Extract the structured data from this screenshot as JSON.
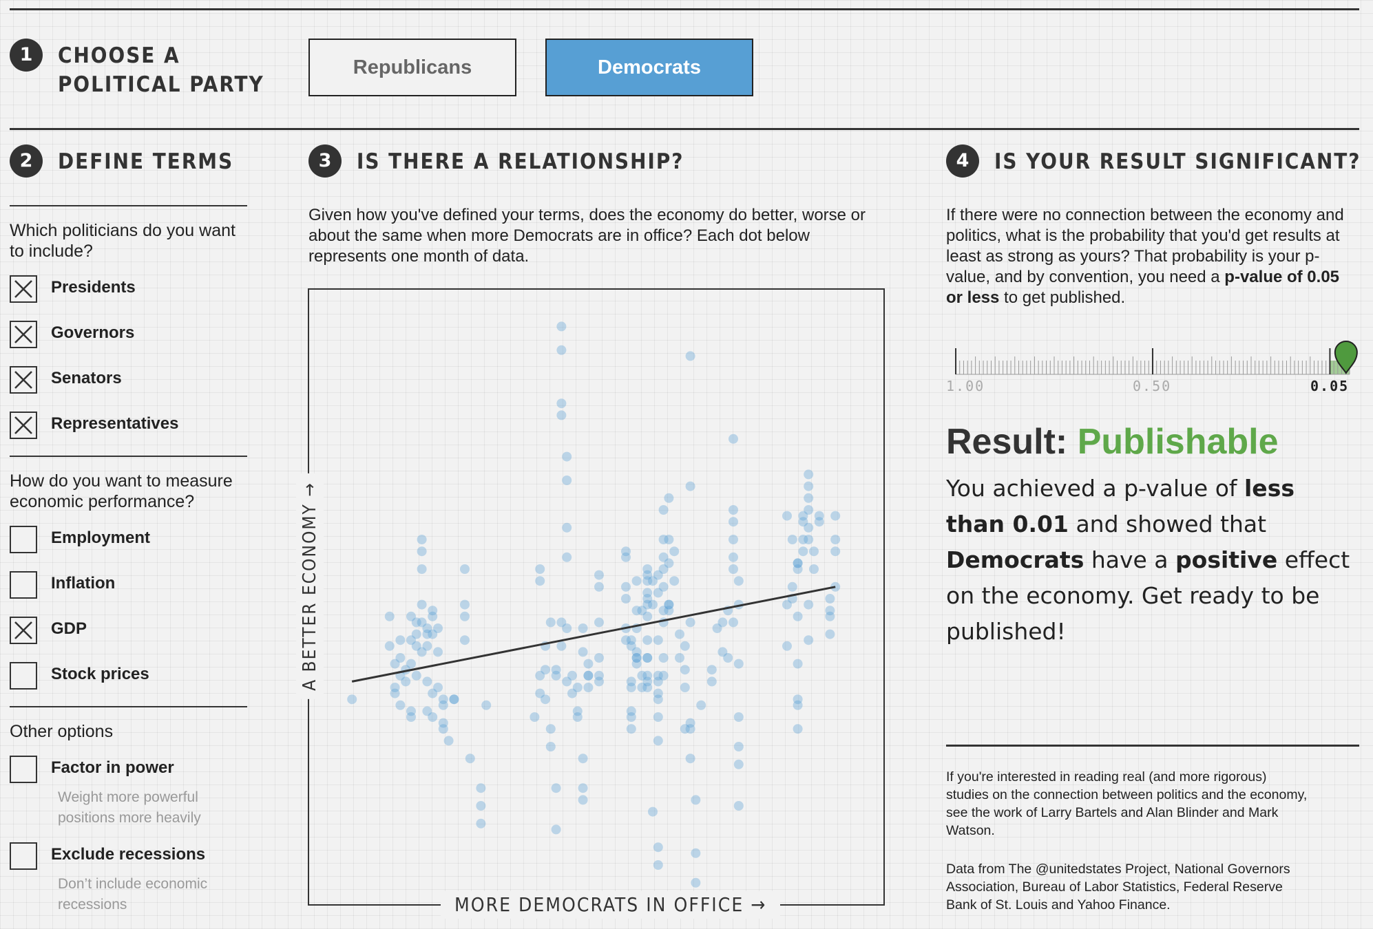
{
  "step1": {
    "number": "1",
    "title_line1": "CHOOSE A",
    "title_line2": "POLITICAL PARTY"
  },
  "party": {
    "options": [
      "Republicans",
      "Democrats"
    ],
    "selected": "Democrats"
  },
  "step2": {
    "number": "2",
    "title": "DEFINE TERMS",
    "q_politicians": "Which politicians do you want to include?",
    "politicians": [
      {
        "label": "Presidents",
        "checked": true
      },
      {
        "label": "Governors",
        "checked": true
      },
      {
        "label": "Senators",
        "checked": true
      },
      {
        "label": "Representatives",
        "checked": true
      }
    ],
    "q_economy": "How do you want to measure economic performance?",
    "measures": [
      {
        "label": "Employment",
        "checked": false
      },
      {
        "label": "Inflation",
        "checked": false
      },
      {
        "label": "GDP",
        "checked": true
      },
      {
        "label": "Stock prices",
        "checked": false
      }
    ],
    "other_title": "Other options",
    "other": [
      {
        "label": "Factor in power",
        "checked": false,
        "hint": "Weight more powerful positions more heavily"
      },
      {
        "label": "Exclude recessions",
        "checked": false,
        "hint": "Don’t include economic recessions"
      }
    ]
  },
  "step3": {
    "number": "3",
    "title": "IS THERE A RELATIONSHIP?",
    "description": "Given how you've defined your terms, does the economy do better, worse or about the same when more Democrats are in office? Each dot below represents one month of data."
  },
  "chart_data": {
    "type": "scatter",
    "xlabel": "MORE DEMOCRATS IN OFFICE →",
    "ylabel": "A BETTER ECONOMY →",
    "xlim": [
      0,
      100
    ],
    "ylim": [
      0,
      100
    ],
    "point_color": "#579fd4",
    "trend": [
      [
        4,
        36
      ],
      [
        94,
        52
      ]
    ],
    "points": [
      [
        4,
        33
      ],
      [
        11,
        42
      ],
      [
        11,
        47
      ],
      [
        12,
        39
      ],
      [
        12,
        35
      ],
      [
        12,
        34
      ],
      [
        13,
        40
      ],
      [
        13,
        43
      ],
      [
        13,
        37
      ],
      [
        13,
        32
      ],
      [
        14,
        38
      ],
      [
        14,
        36
      ],
      [
        15,
        47
      ],
      [
        15,
        43
      ],
      [
        15,
        39
      ],
      [
        15,
        31
      ],
      [
        15,
        30
      ],
      [
        16,
        44
      ],
      [
        16,
        46
      ],
      [
        16,
        37
      ],
      [
        16,
        42
      ],
      [
        17,
        46
      ],
      [
        17,
        41
      ],
      [
        17,
        60
      ],
      [
        17,
        58
      ],
      [
        17,
        55
      ],
      [
        17,
        49
      ],
      [
        18,
        44
      ],
      [
        18,
        42
      ],
      [
        18,
        45
      ],
      [
        18,
        36
      ],
      [
        18,
        31
      ],
      [
        19,
        47
      ],
      [
        19,
        44
      ],
      [
        19,
        34
      ],
      [
        19,
        30
      ],
      [
        19,
        48
      ],
      [
        20,
        45
      ],
      [
        20,
        41
      ],
      [
        20,
        35
      ],
      [
        21,
        33
      ],
      [
        21,
        32
      ],
      [
        21,
        28
      ],
      [
        21,
        29
      ],
      [
        22,
        26
      ],
      [
        23,
        33
      ],
      [
        23,
        33
      ],
      [
        25,
        55
      ],
      [
        25,
        49
      ],
      [
        25,
        47
      ],
      [
        25,
        43
      ],
      [
        26,
        23
      ],
      [
        28,
        18
      ],
      [
        28,
        15
      ],
      [
        28,
        12
      ],
      [
        29,
        32
      ],
      [
        38,
        30
      ],
      [
        39,
        34
      ],
      [
        39,
        53
      ],
      [
        39,
        55
      ],
      [
        39,
        37
      ],
      [
        40,
        42
      ],
      [
        40,
        38
      ],
      [
        40,
        33
      ],
      [
        41,
        28
      ],
      [
        41,
        25
      ],
      [
        41,
        46
      ],
      [
        42,
        38
      ],
      [
        42,
        37
      ],
      [
        42,
        18
      ],
      [
        42,
        11
      ],
      [
        43,
        46
      ],
      [
        43,
        42
      ],
      [
        43,
        81
      ],
      [
        43,
        83
      ],
      [
        43,
        92
      ],
      [
        43,
        96
      ],
      [
        44,
        45
      ],
      [
        44,
        36
      ],
      [
        44,
        74
      ],
      [
        44,
        70
      ],
      [
        44,
        62
      ],
      [
        44,
        57
      ],
      [
        45,
        37
      ],
      [
        45,
        34
      ],
      [
        46,
        35
      ],
      [
        46,
        30
      ],
      [
        46,
        31
      ],
      [
        47,
        18
      ],
      [
        47,
        16
      ],
      [
        47,
        23
      ],
      [
        47,
        41
      ],
      [
        47,
        45
      ],
      [
        48,
        39
      ],
      [
        48,
        37
      ],
      [
        48,
        37
      ],
      [
        48,
        35
      ],
      [
        50,
        54
      ],
      [
        50,
        52
      ],
      [
        50,
        46
      ],
      [
        50,
        40
      ],
      [
        50,
        37
      ],
      [
        50,
        36
      ],
      [
        55,
        43
      ],
      [
        55,
        50
      ],
      [
        55,
        58
      ],
      [
        55,
        57
      ],
      [
        55,
        52
      ],
      [
        55,
        45
      ],
      [
        56,
        43
      ],
      [
        56,
        42
      ],
      [
        56,
        36
      ],
      [
        56,
        35
      ],
      [
        56,
        28
      ],
      [
        56,
        31
      ],
      [
        56,
        30
      ],
      [
        57,
        48
      ],
      [
        57,
        53
      ],
      [
        57,
        45
      ],
      [
        57,
        40
      ],
      [
        57,
        41
      ],
      [
        57,
        39
      ],
      [
        57,
        40
      ],
      [
        58,
        48
      ],
      [
        58,
        35
      ],
      [
        58,
        37
      ],
      [
        59,
        53
      ],
      [
        59,
        54
      ],
      [
        59,
        55
      ],
      [
        59,
        51
      ],
      [
        59,
        47
      ],
      [
        59,
        43
      ],
      [
        59,
        40
      ],
      [
        59,
        40
      ],
      [
        59,
        37
      ],
      [
        59,
        36
      ],
      [
        59,
        35
      ],
      [
        59,
        49
      ],
      [
        59,
        50
      ],
      [
        60,
        14
      ],
      [
        60,
        49
      ],
      [
        60,
        53
      ],
      [
        61,
        54
      ],
      [
        61,
        51
      ],
      [
        61,
        43
      ],
      [
        61,
        36
      ],
      [
        61,
        37
      ],
      [
        61,
        34
      ],
      [
        61,
        33
      ],
      [
        61,
        30
      ],
      [
        61,
        26
      ],
      [
        61,
        8
      ],
      [
        61,
        5
      ],
      [
        62,
        55
      ],
      [
        62,
        52
      ],
      [
        62,
        37
      ],
      [
        62,
        40
      ],
      [
        62,
        46
      ],
      [
        62,
        48
      ],
      [
        62,
        65
      ],
      [
        62,
        60
      ],
      [
        62,
        57
      ],
      [
        63,
        60
      ],
      [
        63,
        49
      ],
      [
        63,
        48
      ],
      [
        63,
        67
      ],
      [
        63,
        56
      ],
      [
        63,
        49
      ],
      [
        64,
        58
      ],
      [
        64,
        53
      ],
      [
        65,
        44
      ],
      [
        65,
        40
      ],
      [
        66,
        35
      ],
      [
        66,
        28
      ],
      [
        66,
        38
      ],
      [
        66,
        42
      ],
      [
        67,
        29
      ],
      [
        67,
        23
      ],
      [
        67,
        28
      ],
      [
        67,
        46
      ],
      [
        67,
        69
      ],
      [
        67,
        91
      ],
      [
        68,
        2
      ],
      [
        68,
        7
      ],
      [
        68,
        16
      ],
      [
        69,
        32
      ],
      [
        71,
        36
      ],
      [
        71,
        38
      ],
      [
        72,
        45
      ],
      [
        73,
        46
      ],
      [
        73,
        41
      ],
      [
        74,
        40
      ],
      [
        74,
        48
      ],
      [
        75,
        46
      ],
      [
        75,
        55
      ],
      [
        75,
        57
      ],
      [
        75,
        60
      ],
      [
        75,
        63
      ],
      [
        75,
        65
      ],
      [
        75,
        77
      ],
      [
        76,
        53
      ],
      [
        76,
        49
      ],
      [
        76,
        39
      ],
      [
        76,
        30
      ],
      [
        76,
        25
      ],
      [
        76,
        22
      ],
      [
        76,
        15
      ],
      [
        85,
        49
      ],
      [
        85,
        42
      ],
      [
        85,
        64
      ],
      [
        86,
        60
      ],
      [
        86,
        50
      ],
      [
        86,
        52
      ],
      [
        87,
        55
      ],
      [
        87,
        56
      ],
      [
        87,
        47
      ],
      [
        87,
        32
      ],
      [
        87,
        33
      ],
      [
        87,
        39
      ],
      [
        87,
        56
      ],
      [
        87,
        28
      ],
      [
        88,
        58
      ],
      [
        88,
        60
      ],
      [
        88,
        63
      ],
      [
        88,
        64
      ],
      [
        89,
        62
      ],
      [
        89,
        49
      ],
      [
        89,
        43
      ],
      [
        89,
        71
      ],
      [
        89,
        69
      ],
      [
        89,
        67
      ],
      [
        89,
        65
      ],
      [
        89,
        60
      ],
      [
        90,
        58
      ],
      [
        90,
        55
      ],
      [
        91,
        63
      ],
      [
        91,
        64
      ],
      [
        93,
        50
      ],
      [
        93,
        48
      ],
      [
        93,
        47
      ],
      [
        93,
        44
      ],
      [
        94,
        52
      ],
      [
        94,
        58
      ],
      [
        94,
        60
      ],
      [
        94,
        64
      ]
    ]
  },
  "step4": {
    "number": "4",
    "title": "IS YOUR RESULT SIGNIFICANT?",
    "description_pre": "If there were no connection between the economy and politics, what is the probability that you'd get results at least as strong as yours? That probability is your p-value, and by convention, you need a ",
    "description_bold": "p-value of 0.05 or less",
    "description_post": " to get published.",
    "scale_labels": [
      "1.00",
      "0.50",
      "0.05"
    ],
    "pvalue": 0.009,
    "marker_color": "#4f9a3e",
    "result_label": "Result:",
    "result_value": "Publishable",
    "result_color": "#5fa84a",
    "explain": {
      "t1": "You achieved a p-value of ",
      "b1": "less than 0.01",
      "t2": " and showed that ",
      "b2": "Democrats",
      "t3": " have a ",
      "b3": "positive",
      "t4": " effect on the economy. Get ready to be published!"
    }
  },
  "footer": {
    "para1": "If you're interested in reading real (and more rigorous) studies on the connection between politics and the economy, see the work of Larry Bartels and Alan Blinder and Mark Watson.",
    "para2": "Data from The @unitedstates Project, National Governors Association, Bureau of Labor Statistics, Federal Reserve Bank of St. Louis and Yahoo Finance."
  }
}
